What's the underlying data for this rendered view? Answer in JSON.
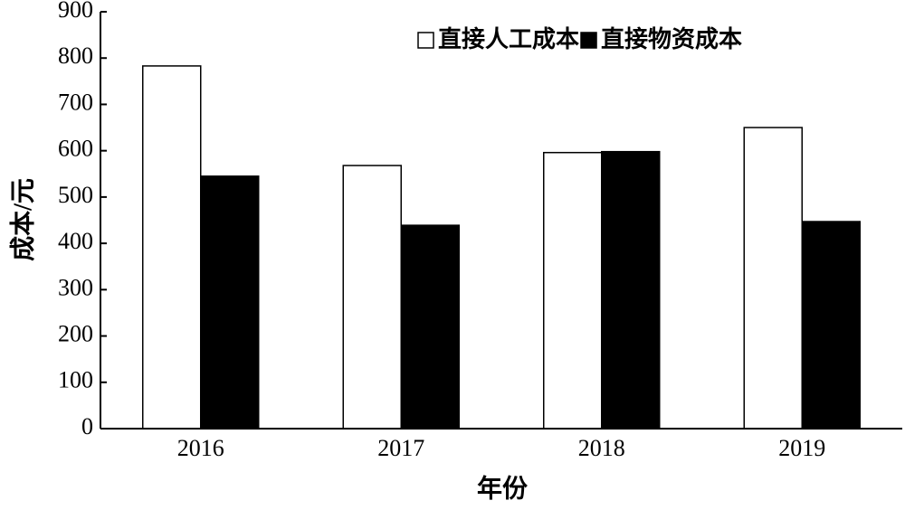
{
  "chart_data": {
    "type": "bar",
    "x_label": "年份",
    "y_label": "成本/元",
    "categories": [
      "2016",
      "2017",
      "2018",
      "2019"
    ],
    "series": [
      {
        "name": "直接人工成本",
        "color": "#ffffff",
        "values": [
          783,
          568,
          596,
          650
        ]
      },
      {
        "name": "直接物资成本",
        "color": "#000000",
        "values": [
          545,
          439,
          598,
          447
        ]
      }
    ],
    "ylim": [
      0,
      900
    ],
    "yticks": [
      0,
      100,
      200,
      300,
      400,
      500,
      600,
      700,
      800,
      900
    ],
    "grid": false,
    "legend": "top-right"
  }
}
